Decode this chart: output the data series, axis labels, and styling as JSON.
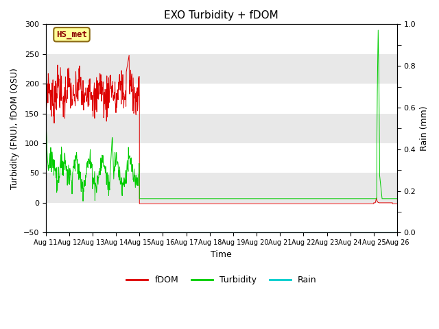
{
  "title": "EXO Turbidity + fDOM",
  "xlabel": "Time",
  "ylabel_left": "Turbidity (FNU), fDOM (QSU)",
  "ylabel_right": "Rain (mm)",
  "ylim_left": [
    -50,
    300
  ],
  "ylim_right": [
    0.0,
    1.0
  ],
  "x_tick_labels": [
    "Aug 11",
    "Aug 12",
    "Aug 13",
    "Aug 14",
    "Aug 15",
    "Aug 16",
    "Aug 17",
    "Aug 18",
    "Aug 19",
    "Aug 20",
    "Aug 21",
    "Aug 22",
    "Aug 23",
    "Aug 24",
    "Aug 25",
    "Aug 26"
  ],
  "annotation_text": "HS_met",
  "annotation_color": "#8B0000",
  "annotation_bg": "#FFFF99",
  "annotation_border": "#8B6914",
  "fdom_color": "#DD0000",
  "turbidity_color": "#00CC00",
  "rain_color": "#00CCCC",
  "bg_light": "#E8E8E8",
  "bg_dark": "#D0D0D0",
  "grid_color": "#FFFFFF",
  "title_fontsize": 11,
  "yticks_left": [
    -50,
    0,
    50,
    100,
    150,
    200,
    250,
    300
  ],
  "yticks_right": [
    0.0,
    0.2,
    0.4,
    0.6,
    0.8,
    1.0
  ]
}
